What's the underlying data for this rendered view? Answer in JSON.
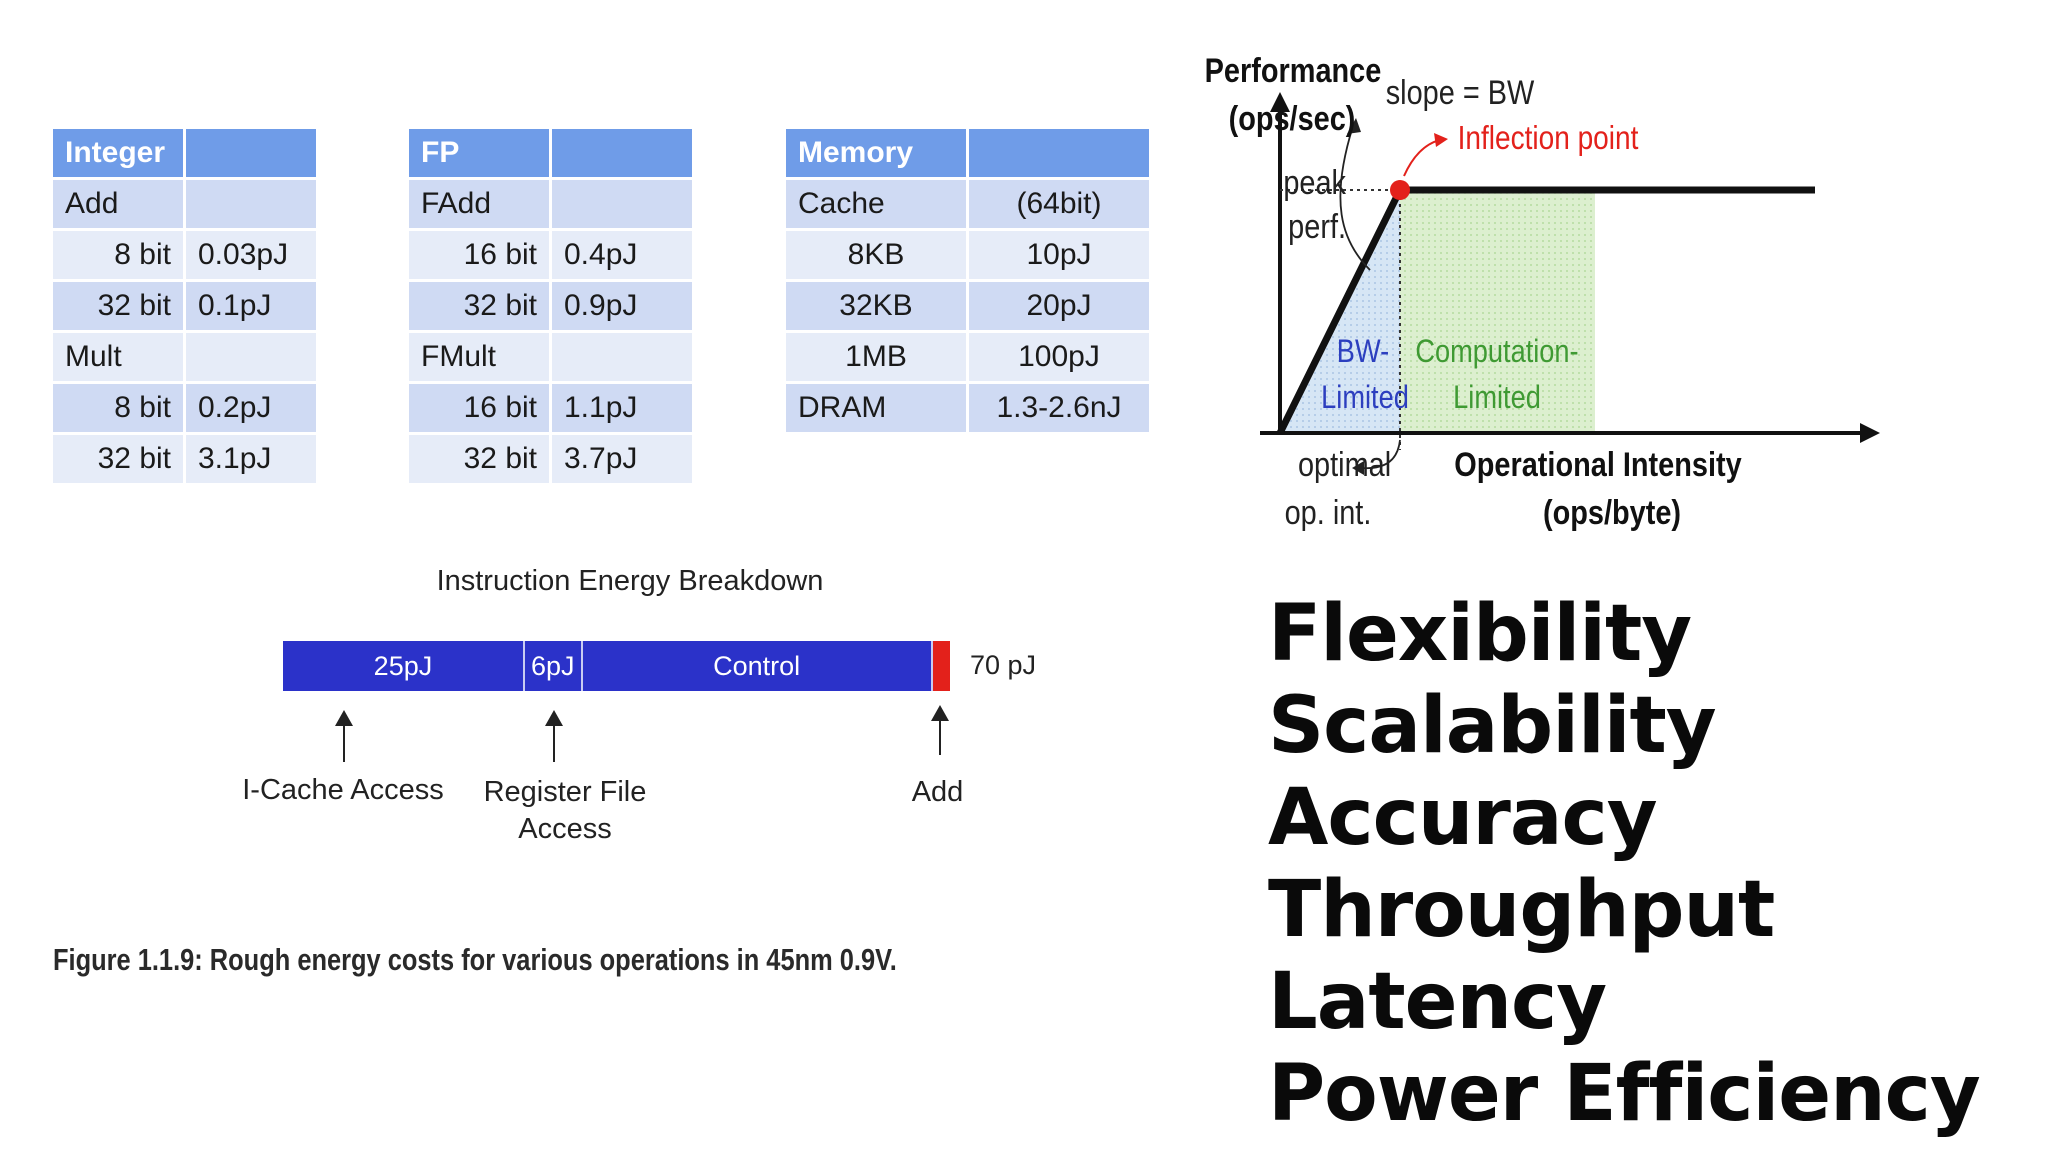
{
  "tables": {
    "integer": {
      "header": [
        "Integer",
        ""
      ],
      "rows": [
        [
          "Add",
          ""
        ],
        [
          "8 bit",
          "0.03pJ"
        ],
        [
          "32 bit",
          "0.1pJ"
        ],
        [
          "Mult",
          ""
        ],
        [
          "8 bit",
          "0.2pJ"
        ],
        [
          "32 bit",
          "3.1pJ"
        ]
      ]
    },
    "fp": {
      "header": [
        "FP",
        ""
      ],
      "rows": [
        [
          "FAdd",
          ""
        ],
        [
          "16 bit",
          "0.4pJ"
        ],
        [
          "32 bit",
          "0.9pJ"
        ],
        [
          "FMult",
          ""
        ],
        [
          "16 bit",
          "1.1pJ"
        ],
        [
          "32 bit",
          "3.7pJ"
        ]
      ]
    },
    "memory": {
      "header": [
        "Memory",
        ""
      ],
      "rows": [
        [
          "Cache",
          "(64bit)"
        ],
        [
          "8KB",
          "10pJ"
        ],
        [
          "32KB",
          "20pJ"
        ],
        [
          "1MB",
          "100pJ"
        ],
        [
          "DRAM",
          "1.3-2.6nJ"
        ]
      ]
    }
  },
  "breakdown": {
    "title": "Instruction Energy Breakdown",
    "segments": [
      {
        "label": "25pJ",
        "value": 25
      },
      {
        "label": "6pJ",
        "value": 6
      },
      {
        "label": "Control",
        "value": 36.5
      },
      {
        "label": "",
        "value": 2
      }
    ],
    "total_label": "70 pJ",
    "pointer_labels": {
      "icache": "I-Cache Access",
      "regfile_line1": "Register File",
      "regfile_line2": "Access",
      "add": "Add"
    },
    "colors": {
      "segment": "#2b32c9",
      "add_segment": "#e3211b"
    }
  },
  "caption": "Figure 1.1.9: Rough energy costs for various operations in 45nm 0.9V.",
  "roofline": {
    "y_label_line1": "Performance",
    "y_label_line2": "(ops/sec)",
    "peak_line1": "peak",
    "peak_line2": "perf.",
    "slope_label": "slope = BW",
    "inflection_label": "Inflection point",
    "bw_region_line1": "BW-",
    "bw_region_line2": "Limited",
    "comp_region_line1": "Computation-",
    "comp_region_line2": "Limited",
    "optimal_line1": "optimal",
    "optimal_line2": "op. int.",
    "x_label_line1": "Operational Intensity",
    "x_label_line2": "(ops/byte)",
    "colors": {
      "inflection": "#e3211b",
      "bw_fill": "#d6e6f5",
      "comp_fill": "#dcefcf",
      "bw_text": "#2c3fbf",
      "comp_text": "#3f9a33"
    }
  },
  "words": [
    "Flexibility",
    "Scalability",
    "Accuracy",
    "Throughput",
    "Latency",
    "Power Efficiency"
  ]
}
